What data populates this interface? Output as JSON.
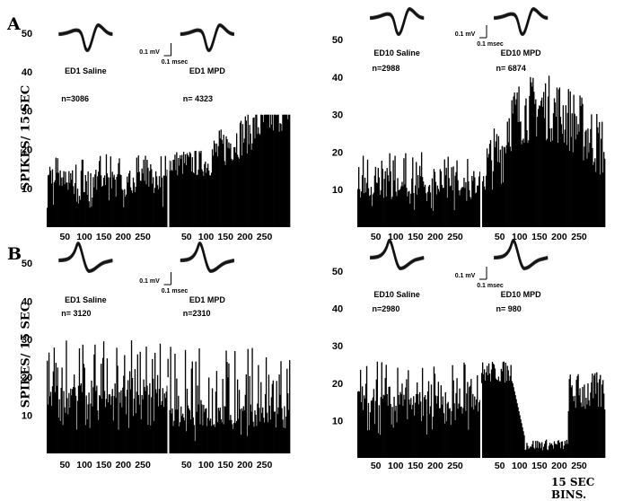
{
  "figure": {
    "panel_letters": [
      "A",
      "B"
    ],
    "ylabel": "SPIKES/ 15 SEC",
    "xlabel": "15 SEC BINS.",
    "scale_bar": {
      "voltage": "0.1 mV",
      "time": "0.1 msec"
    }
  },
  "chart_data": [
    {
      "type": "bar",
      "panel": "A-left",
      "ylim": [
        0,
        52
      ],
      "yticks": [
        10,
        20,
        30,
        40,
        50
      ],
      "xticks": [
        "50",
        "100",
        "150",
        "200",
        "250",
        "50",
        "100",
        "150",
        "200",
        "250"
      ],
      "segments": [
        {
          "name": "ED1 Saline",
          "n": "n=3086",
          "mean_rate": 15,
          "range": [
            5,
            19
          ]
        },
        {
          "name": "ED1 MPD",
          "n": "n= 4323",
          "mean_rate": 22,
          "range": [
            10,
            29
          ]
        }
      ],
      "waveform": "down"
    },
    {
      "type": "bar",
      "panel": "A-right",
      "ylim": [
        0,
        52
      ],
      "yticks": [
        10,
        20,
        30,
        40,
        50
      ],
      "xticks": [
        "50",
        "100",
        "150",
        "200",
        "250",
        "50",
        "100",
        "150",
        "200",
        "250"
      ],
      "segments": [
        {
          "name": "ED10 Saline",
          "n": "n=2988",
          "mean_rate": 14,
          "range": [
            4,
            20
          ]
        },
        {
          "name": "ED10  MPD",
          "n": "n= 6874",
          "mean_rate": 28,
          "range": [
            10,
            41
          ]
        }
      ],
      "waveform": "down"
    },
    {
      "type": "bar",
      "panel": "B-left",
      "ylim": [
        0,
        52
      ],
      "yticks": [
        10,
        20,
        30,
        40,
        50
      ],
      "xticks": [
        "50",
        "100",
        "150",
        "200",
        "250",
        "50",
        "100",
        "150",
        "200",
        "250"
      ],
      "segments": [
        {
          "name": "ED1 Saline",
          "n": "n= 3120",
          "mean_rate": 18,
          "range": [
            5,
            30
          ]
        },
        {
          "name": "ED1 MPD",
          "n": "n=2310",
          "mean_rate": 13,
          "range": [
            3,
            28
          ]
        }
      ],
      "waveform": "up"
    },
    {
      "type": "bar",
      "panel": "B-right",
      "ylim": [
        0,
        52
      ],
      "yticks": [
        10,
        20,
        30,
        40,
        50
      ],
      "xticks": [
        "50",
        "100",
        "150",
        "200",
        "250",
        "50",
        "100",
        "150",
        "200",
        "250"
      ],
      "segments": [
        {
          "name": "ED10 Saline",
          "n": "n=2980",
          "mean_rate": 18,
          "range": [
            6,
            26
          ]
        },
        {
          "name": "ED10  MPD",
          "n": "n= 980",
          "mean_rate": 10,
          "range": [
            1,
            26
          ]
        }
      ],
      "waveform": "up"
    }
  ]
}
